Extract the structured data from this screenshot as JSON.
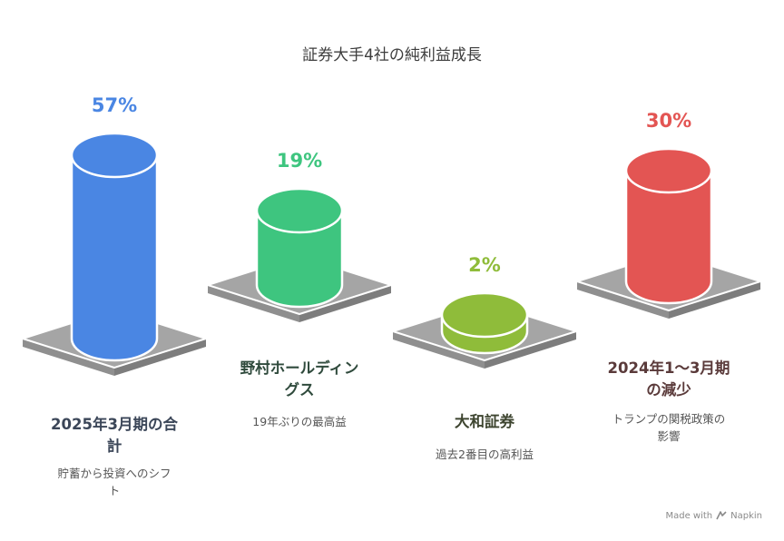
{
  "chart_data": {
    "type": "bar",
    "title": "証券大手4社の純利益成長",
    "categories": [
      "2025年3月期の合計",
      "野村ホールディングス",
      "大和証券",
      "2024年1〜3月期の減少"
    ],
    "values": [
      57,
      19,
      2,
      30
    ],
    "unit": "%",
    "items": [
      {
        "value_label": "57%",
        "heading": [
          "2025年3月期の合",
          "計"
        ],
        "subtext": [
          "貯蓄から投資へのシフ",
          "ト"
        ],
        "color": "#4a86e3",
        "text_color": "#4a86e3",
        "heading_color": "#3b4658"
      },
      {
        "value_label": "19%",
        "heading": [
          "野村ホールディン",
          "グス"
        ],
        "subtext": [
          "19年ぶりの最高益"
        ],
        "color": "#3ec57f",
        "text_color": "#3ec57f",
        "heading_color": "#2f4a3c"
      },
      {
        "value_label": "2%",
        "heading": [
          "大和証券"
        ],
        "subtext": [
          "過去2番目の高利益"
        ],
        "color": "#8fbc3a",
        "text_color": "#8fbc3a",
        "heading_color": "#3e4530"
      },
      {
        "value_label": "30%",
        "heading": [
          "2024年1〜3月期",
          "の減少"
        ],
        "subtext": [
          "トランプの関税政策の",
          "影響"
        ],
        "color": "#e35553",
        "text_color": "#e35553",
        "heading_color": "#5a3a3a"
      }
    ]
  },
  "footer": {
    "made_with": "Made with",
    "brand": "Napkin",
    "brand_icon": "napkin-logo-icon"
  }
}
